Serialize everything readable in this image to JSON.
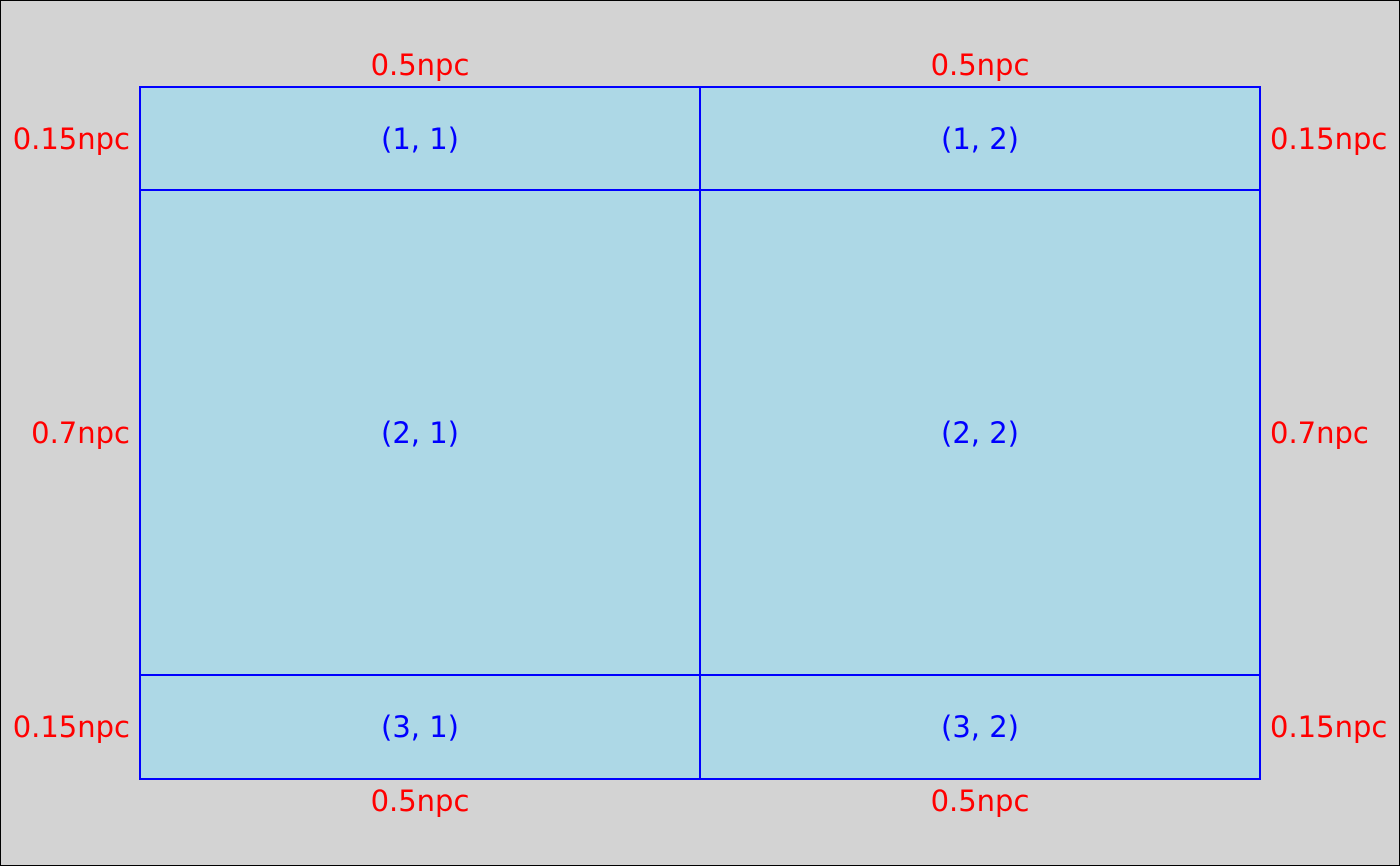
{
  "colors": {
    "background": "#d3d3d3",
    "cell_fill": "#add8e6",
    "cell_stroke": "#0000ff",
    "dimension_label": "#ff0000",
    "cell_label": "#0000ff",
    "frame": "#000000"
  },
  "layout": {
    "columns": [
      {
        "width_label": "0.5npc",
        "top_label": "0.5npc",
        "bottom_label": "0.5npc"
      },
      {
        "width_label": "0.5npc",
        "top_label": "0.5npc",
        "bottom_label": "0.5npc"
      }
    ],
    "rows": [
      {
        "left_label": "0.15npc",
        "right_label": "0.15npc"
      },
      {
        "left_label": "0.7npc",
        "right_label": "0.7npc"
      },
      {
        "left_label": "0.15npc",
        "right_label": "0.15npc"
      }
    ],
    "cells": [
      [
        "(1, 1)",
        "(1, 2)"
      ],
      [
        "(2, 1)",
        "(2, 2)"
      ],
      [
        "(3, 1)",
        "(3, 2)"
      ]
    ]
  }
}
